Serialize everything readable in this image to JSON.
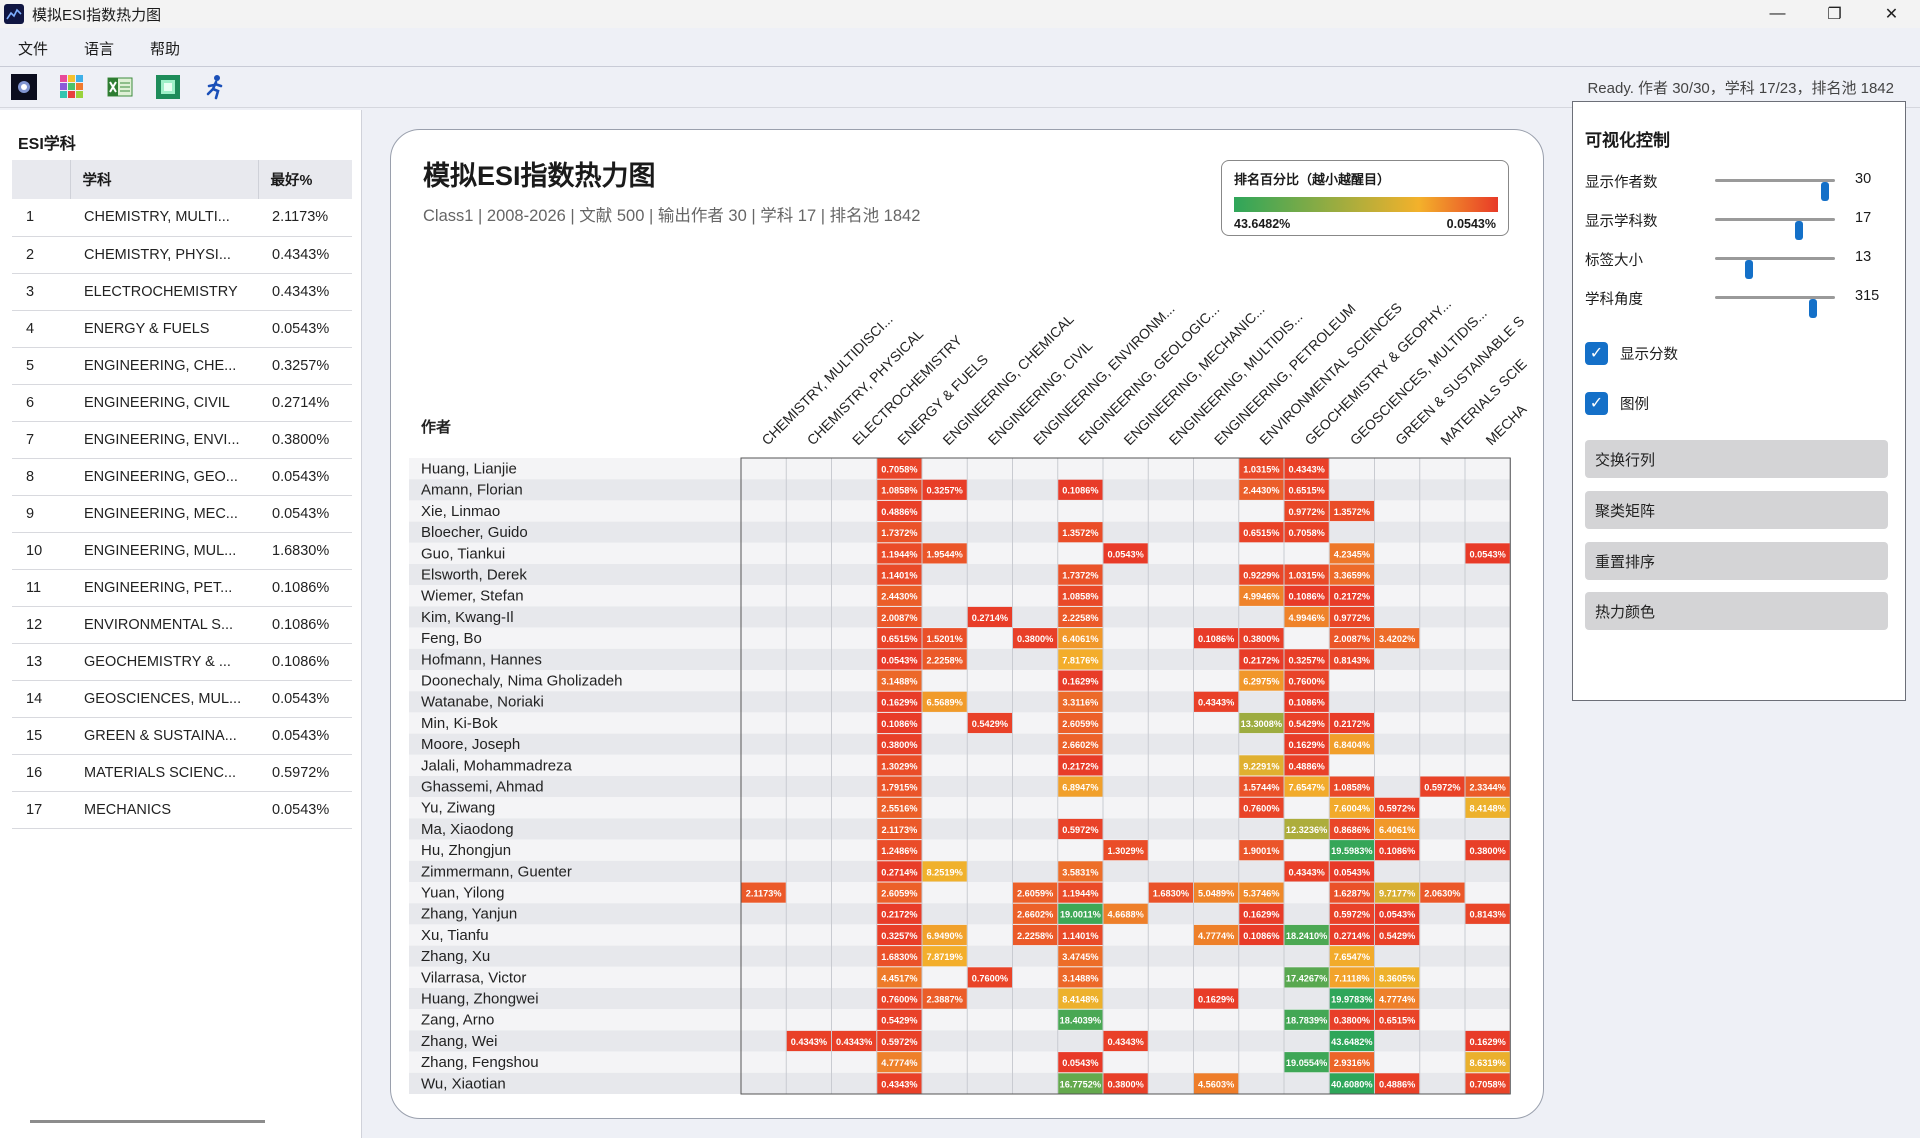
{
  "app": {
    "title": "模拟ESI指数热力图"
  },
  "window_controls": [
    "—",
    "❐",
    "✕"
  ],
  "menu": [
    "文件",
    "语言",
    "帮助"
  ],
  "toolbar": {
    "icons": [
      "galaxy-icon",
      "color-grid-icon",
      "excel-icon",
      "image-icon",
      "runner-icon"
    ]
  },
  "status": "Ready. 作者 30/30，学科 17/23，排名池 1842",
  "left_panel": {
    "title": "ESI学科",
    "headers": [
      "",
      "学科",
      "最好%"
    ],
    "rows": [
      [
        "1",
        "CHEMISTRY, MULTI...",
        "2.1173%"
      ],
      [
        "2",
        "CHEMISTRY, PHYSI...",
        "0.4343%"
      ],
      [
        "3",
        "ELECTROCHEMISTRY",
        "0.4343%"
      ],
      [
        "4",
        "ENERGY & FUELS",
        "0.0543%"
      ],
      [
        "5",
        "ENGINEERING, CHE...",
        "0.3257%"
      ],
      [
        "6",
        "ENGINEERING, CIVIL",
        "0.2714%"
      ],
      [
        "7",
        "ENGINEERING, ENVI...",
        "0.3800%"
      ],
      [
        "8",
        "ENGINEERING, GEO...",
        "0.0543%"
      ],
      [
        "9",
        "ENGINEERING, MEC...",
        "0.0543%"
      ],
      [
        "10",
        "ENGINEERING, MUL...",
        "1.6830%"
      ],
      [
        "11",
        "ENGINEERING, PET...",
        "0.1086%"
      ],
      [
        "12",
        "ENVIRONMENTAL S...",
        "0.1086%"
      ],
      [
        "13",
        "GEOCHEMISTRY & ...",
        "0.1086%"
      ],
      [
        "14",
        "GEOSCIENCES, MUL...",
        "0.0543%"
      ],
      [
        "15",
        "GREEN & SUSTAINA...",
        "0.0543%"
      ],
      [
        "16",
        "MATERIALS SCIENC...",
        "0.5972%"
      ],
      [
        "17",
        "MECHANICS",
        "0.0543%"
      ]
    ]
  },
  "card": {
    "title": "模拟ESI指数热力图",
    "subtitle": "Class1 | 2008-2026 | 文献 500 | 输出作者 30 | 学科 17 | 排名池 1842",
    "legend_title": "排名百分比（越小越醒目）",
    "legend_min": "43.6482%",
    "legend_max": "0.0543%",
    "colors": {
      "good": "#e83a28",
      "mid": "#f3b12b",
      "bad": "#2ea65a"
    }
  },
  "chart_data": {
    "type": "heatmap",
    "ylabel": "作者",
    "columns": [
      "CHEMISTRY, MULTIDISCI...",
      "CHEMISTRY, PHYSICAL",
      "ELECTROCHEMISTRY",
      "ENERGY & FUELS",
      "ENGINEERING, CHEMICAL",
      "ENGINEERING, CIVIL",
      "ENGINEERING, ENVIRONM...",
      "ENGINEERING, GEOLOGIC...",
      "ENGINEERING, MECHANIC...",
      "ENGINEERING, MULTIDIS...",
      "ENGINEERING, PETROLEUM",
      "ENVIRONMENTAL SCIENCES",
      "GEOCHEMISTRY & GEOPHY...",
      "GEOSCIENCES, MULTIDIS...",
      "GREEN & SUSTAINABLE S",
      "MATERIALS SCIE",
      "MECHA"
    ],
    "rows": [
      "Huang, Lianjie",
      "Amann, Florian",
      "Xie, Linmao",
      "Bloecher, Guido",
      "Guo, Tiankui",
      "Elsworth, Derek",
      "Wiemer, Stefan",
      "Kim, Kwang-Il",
      "Feng, Bo",
      "Hofmann, Hannes",
      "Doonechaly, Nima Gholizadeh",
      "Watanabe, Noriaki",
      "Min, Ki-Bok",
      "Moore, Joseph",
      "Jalali, Mohammadreza",
      "Ghassemi, Ahmad",
      "Yu, Ziwang",
      "Ma, Xiaodong",
      "Hu, Zhongjun",
      "Zimmermann, Guenter",
      "Yuan, Yilong",
      "Zhang, Yanjun",
      "Xu, Tianfu",
      "Zhang, Xu",
      "Vilarrasa, Victor",
      "Huang, Zhongwei",
      "Zang, Arno",
      "Zhang, Wei",
      "Zhang, Fengshou",
      "Wu, Xiaotian"
    ],
    "values": [
      [
        null,
        null,
        null,
        0.7058,
        null,
        null,
        null,
        null,
        null,
        null,
        null,
        1.0315,
        0.4343,
        null,
        null,
        null,
        null
      ],
      [
        null,
        null,
        null,
        1.0858,
        0.3257,
        null,
        null,
        0.1086,
        null,
        null,
        null,
        2.443,
        0.6515,
        null,
        null,
        null,
        null
      ],
      [
        null,
        null,
        null,
        0.4886,
        null,
        null,
        null,
        null,
        null,
        null,
        null,
        null,
        0.9772,
        1.3572,
        null,
        null,
        null
      ],
      [
        null,
        null,
        null,
        1.7372,
        null,
        null,
        null,
        1.3572,
        null,
        null,
        null,
        0.6515,
        0.7058,
        null,
        null,
        null,
        null
      ],
      [
        null,
        null,
        null,
        1.1944,
        1.9544,
        null,
        null,
        null,
        0.0543,
        null,
        null,
        null,
        null,
        4.2345,
        null,
        null,
        0.0543
      ],
      [
        null,
        null,
        null,
        1.1401,
        null,
        null,
        null,
        1.7372,
        null,
        null,
        null,
        0.9229,
        1.0315,
        3.3659,
        null,
        null,
        null
      ],
      [
        null,
        null,
        null,
        2.443,
        null,
        null,
        null,
        1.0858,
        null,
        null,
        null,
        4.9946,
        0.1086,
        0.2172,
        null,
        null,
        null
      ],
      [
        null,
        null,
        null,
        2.0087,
        null,
        0.2714,
        null,
        2.2258,
        null,
        null,
        null,
        null,
        4.9946,
        0.9772,
        null,
        null,
        null
      ],
      [
        null,
        null,
        null,
        0.6515,
        1.5201,
        null,
        0.38,
        6.4061,
        null,
        null,
        0.1086,
        0.38,
        null,
        2.0087,
        3.4202,
        null,
        null
      ],
      [
        null,
        null,
        null,
        0.0543,
        2.2258,
        null,
        null,
        7.8176,
        null,
        null,
        null,
        0.2172,
        0.3257,
        0.8143,
        null,
        null,
        null
      ],
      [
        null,
        null,
        null,
        3.1488,
        null,
        null,
        null,
        0.1629,
        null,
        null,
        null,
        6.2975,
        0.76,
        null,
        null,
        null,
        null
      ],
      [
        null,
        null,
        null,
        0.1629,
        6.5689,
        null,
        null,
        3.3116,
        null,
        null,
        0.4343,
        null,
        0.1086,
        null,
        null,
        null,
        null
      ],
      [
        null,
        null,
        null,
        0.1086,
        null,
        0.5429,
        null,
        2.6059,
        null,
        null,
        null,
        13.3008,
        0.5429,
        0.2172,
        null,
        null,
        null
      ],
      [
        null,
        null,
        null,
        0.38,
        null,
        null,
        null,
        2.6602,
        null,
        null,
        null,
        null,
        0.1629,
        6.8404,
        null,
        null,
        null
      ],
      [
        null,
        null,
        null,
        1.3029,
        null,
        null,
        null,
        0.2172,
        null,
        null,
        null,
        9.2291,
        0.4886,
        null,
        null,
        null,
        null
      ],
      [
        null,
        null,
        null,
        1.7915,
        null,
        null,
        null,
        6.8947,
        null,
        null,
        null,
        1.5744,
        7.6547,
        1.0858,
        null,
        0.5972,
        2.3344
      ],
      [
        null,
        null,
        null,
        2.5516,
        null,
        null,
        null,
        null,
        null,
        null,
        null,
        0.76,
        null,
        7.6004,
        0.5972,
        null,
        8.4148
      ],
      [
        null,
        null,
        null,
        2.1173,
        null,
        null,
        null,
        0.5972,
        null,
        null,
        null,
        null,
        12.3236,
        0.8686,
        6.4061,
        null,
        null
      ],
      [
        null,
        null,
        null,
        1.2486,
        null,
        null,
        null,
        null,
        1.3029,
        null,
        null,
        1.9001,
        null,
        19.5983,
        0.1086,
        null,
        0.38
      ],
      [
        null,
        null,
        null,
        0.2714,
        8.2519,
        null,
        null,
        3.5831,
        null,
        null,
        null,
        null,
        0.4343,
        0.0543,
        null,
        null,
        null
      ],
      [
        2.1173,
        null,
        null,
        2.6059,
        null,
        null,
        2.6059,
        1.1944,
        null,
        1.683,
        5.0489,
        5.3746,
        null,
        1.6287,
        9.7177,
        2.063,
        null
      ],
      [
        null,
        null,
        null,
        0.2172,
        null,
        null,
        2.6602,
        19.0011,
        4.6688,
        null,
        null,
        0.1629,
        null,
        0.5972,
        0.0543,
        null,
        0.8143
      ],
      [
        null,
        null,
        null,
        0.3257,
        6.949,
        null,
        2.2258,
        1.1401,
        null,
        null,
        4.7774,
        0.1086,
        18.241,
        0.2714,
        0.5429,
        null,
        null
      ],
      [
        null,
        null,
        null,
        1.683,
        7.8719,
        null,
        null,
        3.4745,
        null,
        null,
        null,
        null,
        null,
        7.6547,
        null,
        null,
        null
      ],
      [
        null,
        null,
        null,
        4.4517,
        null,
        0.76,
        null,
        3.1488,
        null,
        null,
        null,
        null,
        17.4267,
        7.1118,
        8.3605,
        null,
        null
      ],
      [
        null,
        null,
        null,
        0.76,
        2.3887,
        null,
        null,
        8.4148,
        null,
        null,
        0.1629,
        null,
        null,
        19.9783,
        4.7774,
        null,
        null
      ],
      [
        null,
        null,
        null,
        0.5429,
        null,
        null,
        null,
        18.4039,
        null,
        null,
        null,
        null,
        18.7839,
        0.38,
        0.6515,
        null,
        null
      ],
      [
        null,
        0.4343,
        0.4343,
        0.5972,
        null,
        null,
        null,
        null,
        0.4343,
        null,
        null,
        null,
        null,
        43.6482,
        null,
        null,
        0.1629
      ],
      [
        null,
        null,
        null,
        4.7774,
        null,
        null,
        null,
        0.0543,
        null,
        null,
        null,
        null,
        19.0554,
        2.9316,
        null,
        null,
        8.6319
      ],
      [
        null,
        null,
        null,
        0.4343,
        null,
        null,
        null,
        16.7752,
        0.38,
        null,
        4.5603,
        null,
        null,
        40.608,
        0.4886,
        null,
        0.7058
      ]
    ]
  },
  "right_panel": {
    "title": "可视化控制",
    "sliders": [
      {
        "label": "显示作者数",
        "value": "30",
        "level": 0.92
      },
      {
        "label": "显示学科数",
        "value": "17",
        "level": 0.7
      },
      {
        "label": "标签大小",
        "value": "13",
        "level": 0.28
      },
      {
        "label": "学科角度",
        "value": "315",
        "level": 0.82
      }
    ],
    "checks": [
      {
        "label": "显示分数",
        "checked": true
      },
      {
        "label": "图例",
        "checked": true
      }
    ],
    "buttons": [
      "交换行列",
      "聚类矩阵",
      "重置排序",
      "热力颜色"
    ]
  }
}
